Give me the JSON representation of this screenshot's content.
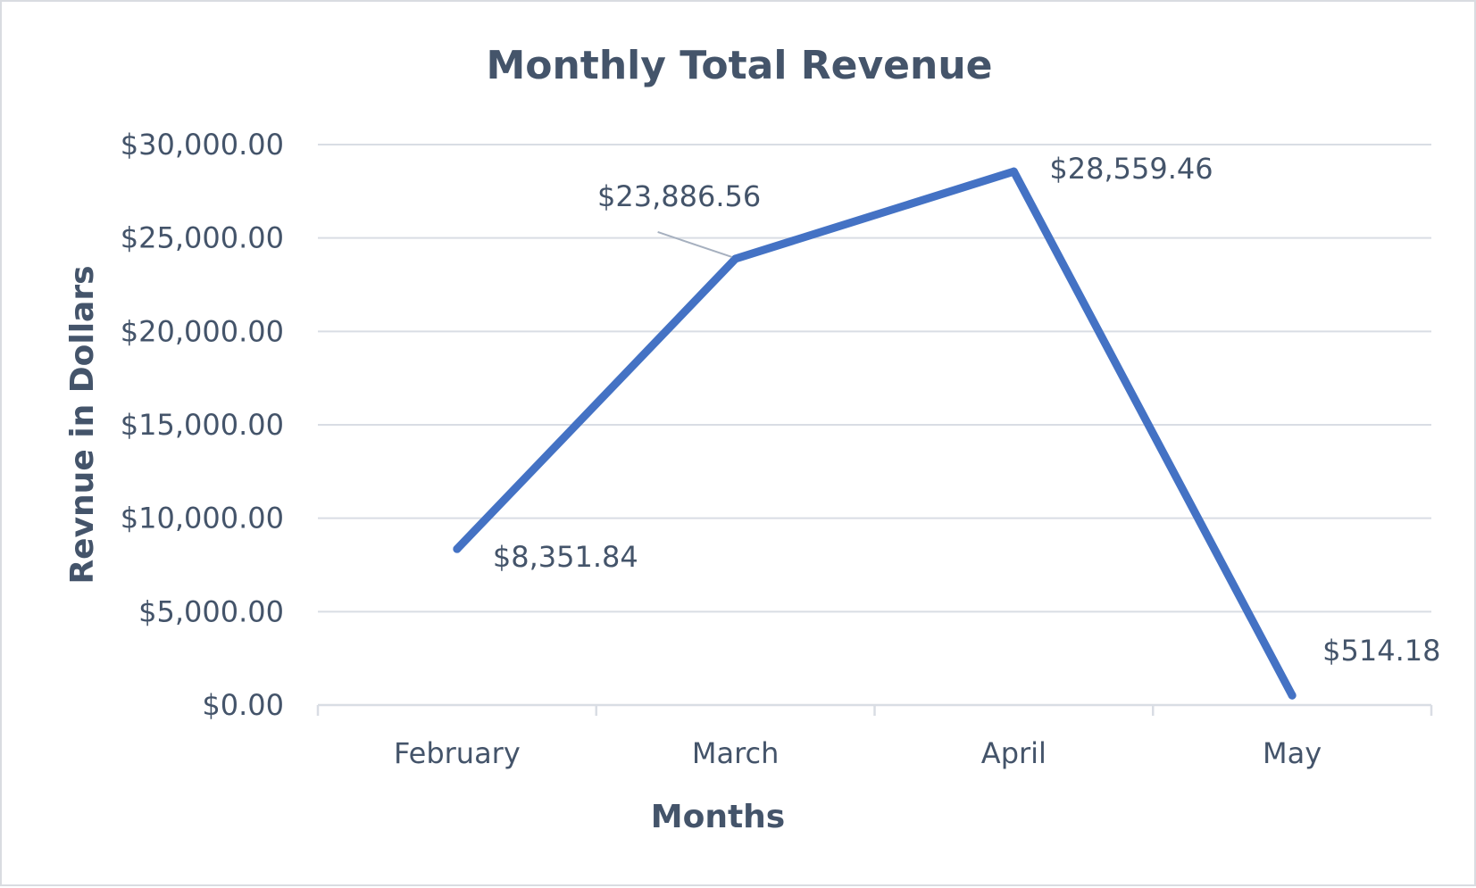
{
  "chart_data": {
    "type": "line",
    "title": "Monthly Total Revenue",
    "xlabel": "Months",
    "ylabel": "Revnue in Dollars",
    "categories": [
      "February",
      "March",
      "April",
      "May"
    ],
    "series": [
      {
        "values": [
          8351.84,
          23886.56,
          28559.46,
          514.18
        ],
        "labels": [
          "$8,351.84",
          "$23,886.56",
          "$28,559.46",
          "$514.18"
        ],
        "color": "#4472c4"
      }
    ],
    "ylim": [
      0,
      30000
    ],
    "yticks": [
      0,
      5000,
      10000,
      15000,
      20000,
      25000,
      30000
    ],
    "ytick_labels": [
      "$0.00",
      "$5,000.00",
      "$10,000.00",
      "$15,000.00",
      "$20,000.00",
      "$25,000.00",
      "$30,000.00"
    ],
    "grid": true,
    "legend": "none"
  },
  "colors": {
    "text": "#44546a",
    "grid": "#d9dde4",
    "line": "#4472c4",
    "leader": "#a6b0bf"
  }
}
